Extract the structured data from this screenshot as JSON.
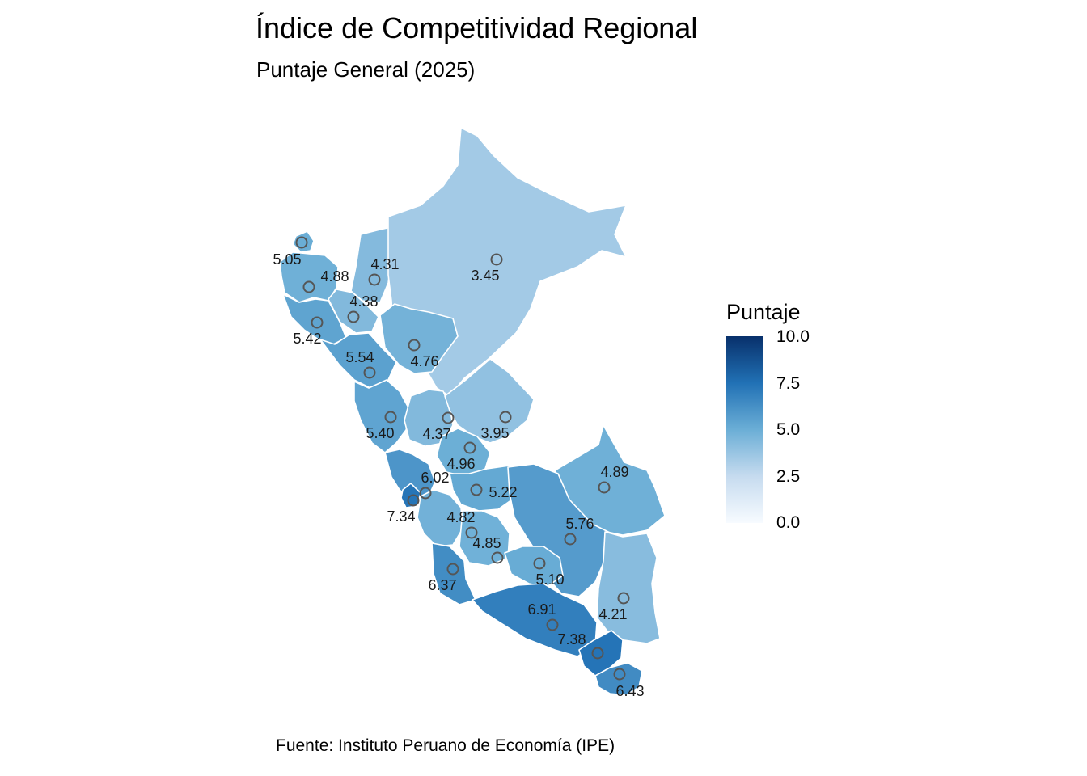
{
  "title": "Índice de Competitividad Regional",
  "subtitle": "Puntaje General (2025)",
  "caption": "Fuente: Instituto Peruano de Economía (IPE)",
  "legend": {
    "title": "Puntaje",
    "ticks": [
      "10.0",
      "7.5",
      "5.0",
      "2.5",
      "0.0"
    ],
    "min": 0,
    "max": 10,
    "colors": [
      "#f7fbff",
      "#c6dbef",
      "#6baed6",
      "#2171b5",
      "#08306b"
    ]
  },
  "chart_data": {
    "type": "choropleth",
    "region_scores": [
      {
        "label": "5.05",
        "value": 5.05
      },
      {
        "label": "4.88",
        "value": 4.88
      },
      {
        "label": "4.31",
        "value": 4.31
      },
      {
        "label": "3.45",
        "value": 3.45
      },
      {
        "label": "4.38",
        "value": 4.38
      },
      {
        "label": "5.42",
        "value": 5.42
      },
      {
        "label": "5.54",
        "value": 5.54
      },
      {
        "label": "4.76",
        "value": 4.76
      },
      {
        "label": "5.40",
        "value": 5.4
      },
      {
        "label": "4.37",
        "value": 4.37
      },
      {
        "label": "3.95",
        "value": 3.95
      },
      {
        "label": "4.96",
        "value": 4.96
      },
      {
        "label": "6.02",
        "value": 6.02
      },
      {
        "label": "7.34",
        "value": 7.34
      },
      {
        "label": "5.22",
        "value": 5.22
      },
      {
        "label": "4.89",
        "value": 4.89
      },
      {
        "label": "4.82",
        "value": 4.82
      },
      {
        "label": "5.76",
        "value": 5.76
      },
      {
        "label": "4.85",
        "value": 4.85
      },
      {
        "label": "5.10",
        "value": 5.1
      },
      {
        "label": "6.37",
        "value": 6.37
      },
      {
        "label": "6.91",
        "value": 6.91
      },
      {
        "label": "4.21",
        "value": 4.21
      },
      {
        "label": "7.38",
        "value": 7.38
      },
      {
        "label": "6.43",
        "value": 6.43
      }
    ]
  }
}
